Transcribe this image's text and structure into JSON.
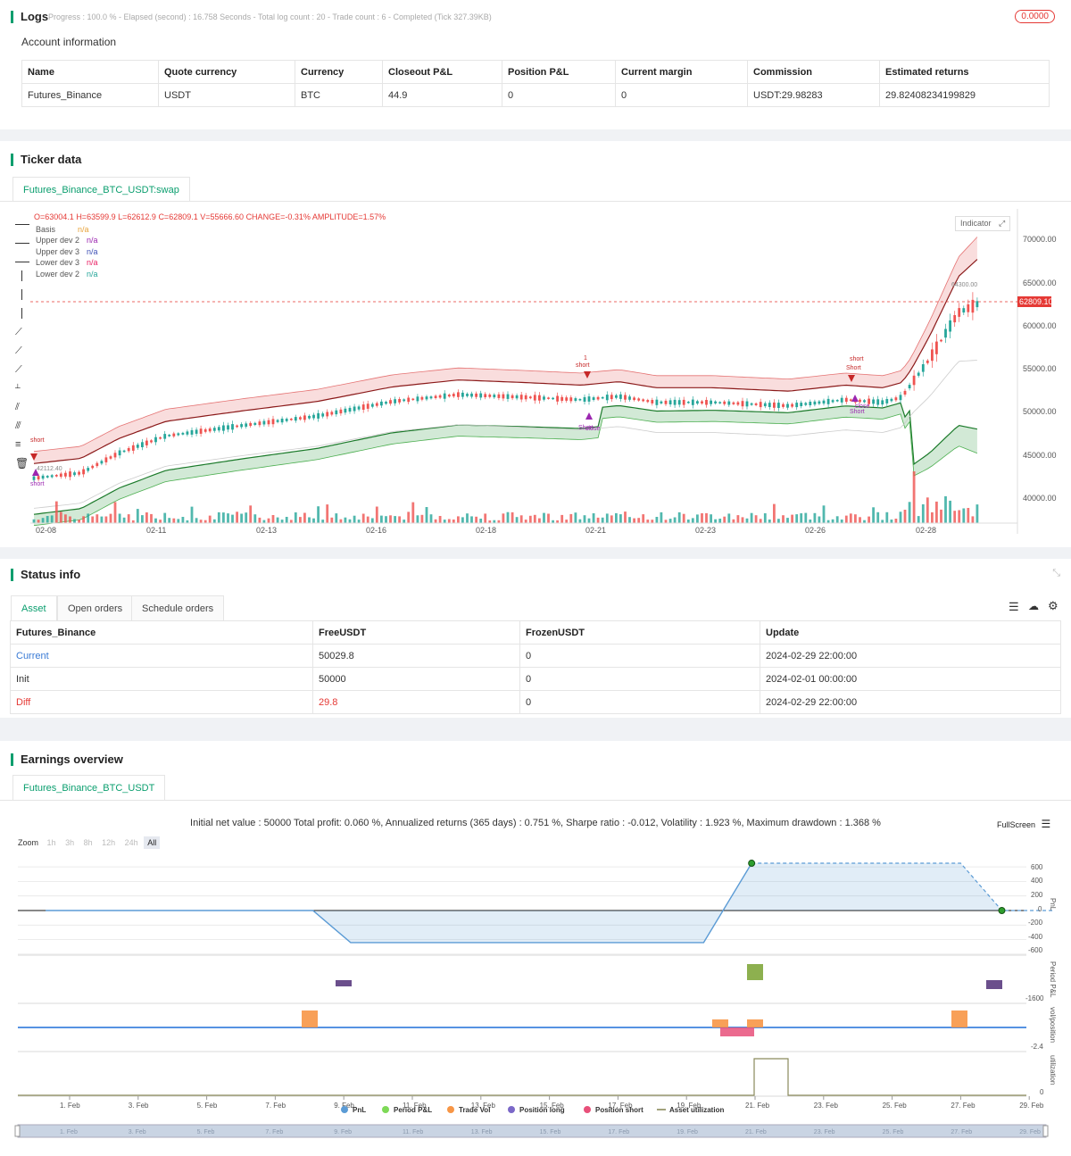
{
  "logs": {
    "title": "Logs",
    "summary": "Progress : 100.0 % - Elapsed (second) : 16.758  Seconds - Total log count : 20 - Trade count : 6 - Completed (Tick 327.39KB)",
    "badge": "0.0000"
  },
  "account": {
    "title": "Account information",
    "headers": [
      "Name",
      "Quote currency",
      "Currency",
      "Closeout P&L",
      "Position P&L",
      "Current margin",
      "Commission",
      "Estimated returns"
    ],
    "row": [
      "Futures_Binance",
      "USDT",
      "BTC",
      "44.9",
      "0",
      "0",
      "USDT:29.98283",
      "29.82408234199829"
    ]
  },
  "ticker": {
    "title": "Ticker data",
    "tab": "Futures_Binance_BTC_USDT:swap",
    "ohlc": {
      "o": "O=63004.1",
      "h": "H=63599.9",
      "l": "L=62612.9",
      "c": "C=62809.1",
      "v": "V=55666.60",
      "change": "CHANGE=-0.31%",
      "amp": "AMPLITUDE=1.57%"
    },
    "legend": [
      {
        "name": "Basis",
        "value": "n/a",
        "color": "#e8a33c"
      },
      {
        "name": "Upper dev 2",
        "value": "n/a",
        "color": "#9c27b0"
      },
      {
        "name": "Upper dev 3",
        "value": "n/a",
        "color": "#3f51b5"
      },
      {
        "name": "Lower dev 3",
        "value": "n/a",
        "color": "#e91e63"
      },
      {
        "name": "Lower dev 2",
        "value": "n/a",
        "color": "#26a69a"
      }
    ],
    "indicator_btn": "Indicator",
    "price_axis": [
      "70000.00",
      "65000.00",
      "60000.00",
      "55000.00",
      "50000.00",
      "45000.00",
      "40000.00"
    ],
    "last_price": "62809.10",
    "high_label": "64300.00",
    "low_label": "42112.40",
    "x_axis": [
      "02-08",
      "02-11",
      "02-13",
      "02-16",
      "02-18",
      "02-21",
      "02-23",
      "02-26",
      "02-28"
    ],
    "markers": {
      "short": "short",
      "Short": "Short",
      "close": "close",
      "one": "1"
    }
  },
  "status": {
    "title": "Status info",
    "tabs": [
      "Asset",
      "Open orders",
      "Schedule orders"
    ],
    "headers": [
      "Futures_Binance",
      "FreeUSDT",
      "FrozenUSDT",
      "Update"
    ],
    "rows": [
      {
        "name": "Current",
        "free": "50029.8",
        "frozen": "0",
        "update": "2024-02-29 22:00:00"
      },
      {
        "name": "Init",
        "free": "50000",
        "frozen": "0",
        "update": "2024-02-01 00:00:00"
      },
      {
        "name": "Diff",
        "free": "29.8",
        "frozen": "0",
        "update": "2024-02-29 22:00:00"
      }
    ]
  },
  "earnings": {
    "title": "Earnings overview",
    "tab": "Futures_Binance_BTC_USDT",
    "summary": "Initial net value : 50000  Total profit: 0.060 %, Annualized returns (365 days) : 0.751 %, Sharpe ratio : -0.012, Volatility : 1.923 %, Maximum drawdown : 1.368 %",
    "fullscreen": "FullScreen",
    "zoom_label": "Zoom",
    "zoom": [
      "1h",
      "3h",
      "8h",
      "12h",
      "24h",
      "All"
    ],
    "pnl_axis": [
      "600",
      "400",
      "200",
      "0",
      "-200",
      "-400",
      "-600"
    ],
    "pnl_label": "PnL",
    "period_label": "Period P&L",
    "period_tick": "-1600",
    "vol_label": "vol/position",
    "vol_tick": "-2.4",
    "util_label": "utilization",
    "util_tick": "0",
    "x_axis": [
      "1. Feb",
      "3. Feb",
      "5. Feb",
      "7. Feb",
      "9. Feb",
      "11. Feb",
      "13. Feb",
      "15. Feb",
      "17. Feb",
      "19. Feb",
      "21. Feb",
      "23. Feb",
      "25. Feb",
      "27. Feb",
      "29. Feb"
    ],
    "legend": [
      {
        "name": "PnL",
        "color": "#5b9bd5"
      },
      {
        "name": "Period P&L",
        "color": "#7ed957"
      },
      {
        "name": "Trade Vol",
        "color": "#f79646"
      },
      {
        "name": "Position long",
        "color": "#7b68c8"
      },
      {
        "name": "Position short",
        "color": "#e8507a"
      },
      {
        "name": "Asset utilization",
        "color": "#8a8a5c"
      }
    ]
  }
}
